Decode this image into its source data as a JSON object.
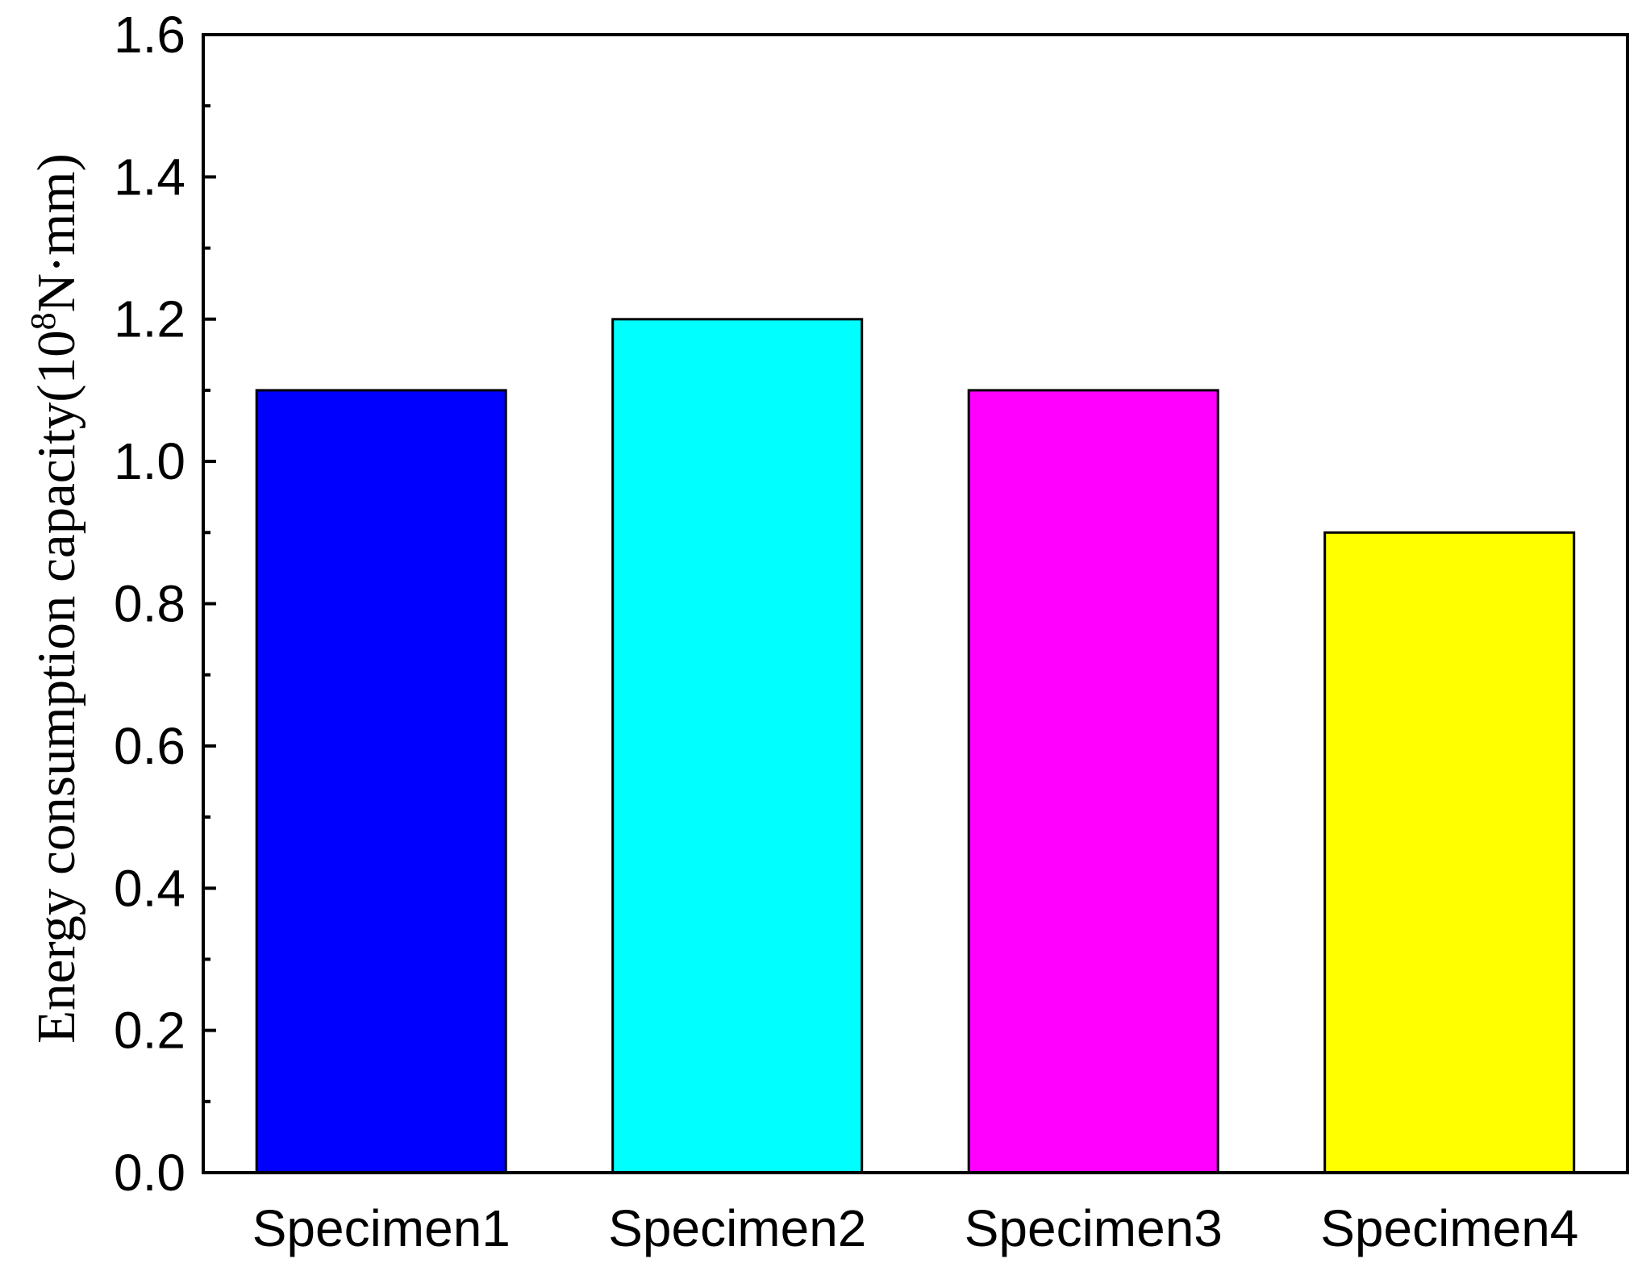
{
  "chart_data": {
    "type": "bar",
    "title": "",
    "xlabel": "",
    "ylabel": {
      "prefix": "Energy consumption capacity(10",
      "superscript": "8",
      "suffix": "N·mm)"
    },
    "categories": [
      "Specimen1",
      "Specimen2",
      "Specimen3",
      "Specimen4"
    ],
    "values": [
      1.1,
      1.2,
      1.1,
      0.9
    ],
    "colors": [
      "#0000ff",
      "#00ffff",
      "#ff00ff",
      "#ffff00"
    ],
    "ylim": [
      0,
      1.6
    ],
    "y_ticks": [
      "0.0",
      "0.2",
      "0.4",
      "0.6",
      "0.8",
      "1.0",
      "1.2",
      "1.4",
      "1.6"
    ],
    "y_minor_ticks": true,
    "grid": false,
    "legend": "none"
  }
}
